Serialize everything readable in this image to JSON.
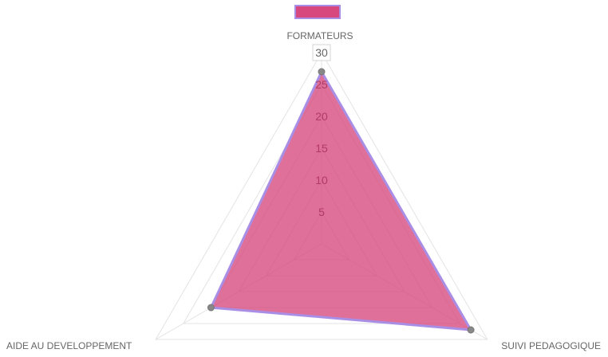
{
  "chart_data": {
    "type": "radar",
    "title": "",
    "legend": {
      "position": "top",
      "entries": [
        {
          "name": "",
          "color": "#d6487e"
        }
      ]
    },
    "axes": [
      "FORMATEURS",
      "SUIVI PEDAGOGIQUE",
      "AIDE AU DEVELOPPEMENT"
    ],
    "r_ticks": [
      "5",
      "10",
      "15",
      "20",
      "25",
      "30"
    ],
    "r_range": [
      0,
      30
    ],
    "series": [
      {
        "values": [
          27,
          27,
          20
        ],
        "fill": "#d6487e",
        "stroke": "#a98ee6",
        "point_color": "#888888"
      }
    ],
    "grid": true
  }
}
